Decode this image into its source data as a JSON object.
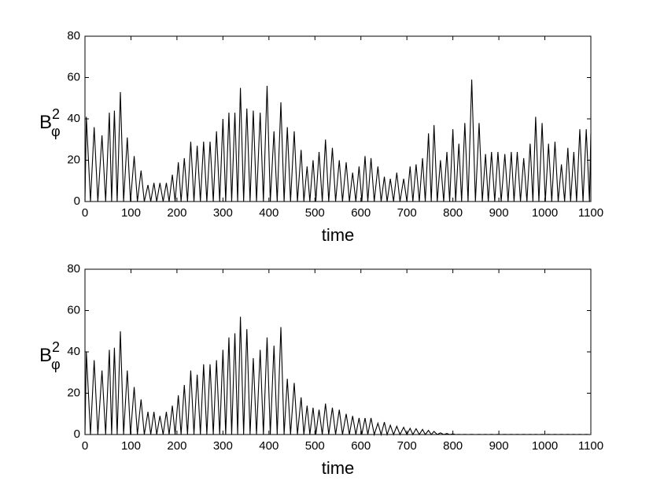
{
  "chart_data": [
    {
      "type": "line",
      "xlabel": "time",
      "ylabel": "B",
      "ylabel_sup": "2",
      "ylabel_sub": "φ",
      "xlim": [
        0,
        1100
      ],
      "ylim": [
        0,
        80
      ],
      "xticks": [
        0,
        100,
        200,
        300,
        400,
        500,
        600,
        700,
        800,
        900,
        1000,
        1100
      ],
      "yticks": [
        0,
        20,
        40,
        60,
        80
      ],
      "series": [
        {
          "color": "#000000",
          "x": [
            0,
            3,
            12,
            20,
            28,
            37,
            45,
            53,
            58,
            64,
            70,
            77,
            84,
            92,
            99,
            107,
            114,
            122,
            129,
            137,
            143,
            150,
            156,
            163,
            170,
            177,
            183,
            190,
            196,
            203,
            209,
            216,
            223,
            230,
            237,
            244,
            251,
            258,
            265,
            272,
            279,
            286,
            293,
            300,
            306,
            313,
            319,
            326,
            332,
            338,
            345,
            352,
            359,
            366,
            373,
            381,
            388,
            396,
            403,
            411,
            418,
            426,
            433,
            440,
            447,
            455,
            462,
            470,
            476,
            483,
            489,
            496,
            502,
            509,
            516,
            523,
            530,
            538,
            545,
            553,
            560,
            568,
            575,
            582,
            589,
            596,
            602,
            609,
            615,
            622,
            629,
            637,
            644,
            651,
            657,
            664,
            671,
            678,
            685,
            693,
            700,
            707,
            713,
            720,
            727,
            734,
            740,
            747,
            753,
            759,
            766,
            773,
            780,
            787,
            793,
            800,
            806,
            813,
            819,
            826,
            833,
            841,
            849,
            857,
            864,
            871,
            877,
            884,
            891,
            898,
            905,
            913,
            920,
            927,
            933,
            940,
            947,
            954,
            961,
            968,
            974,
            980,
            987,
            994,
            1001,
            1008,
            1015,
            1022,
            1029,
            1036,
            1043,
            1050,
            1056,
            1063,
            1069,
            1076,
            1083,
            1090,
            1097,
            1100
          ],
          "values": [
            0,
            41,
            0,
            36,
            0,
            32,
            0,
            43,
            0,
            44,
            0,
            53,
            0,
            31,
            0,
            22,
            0,
            15,
            0,
            8,
            0,
            9,
            0,
            9,
            0,
            9,
            0,
            13,
            0,
            19,
            0,
            21,
            0,
            29,
            0,
            27,
            0,
            29,
            0,
            29,
            0,
            34,
            0,
            40,
            0,
            43,
            0,
            43,
            0,
            55,
            0,
            45,
            0,
            44,
            0,
            43,
            0,
            56,
            0,
            34,
            0,
            48,
            0,
            36,
            0,
            34,
            0,
            25,
            0,
            17,
            0,
            20,
            0,
            24,
            0,
            30,
            0,
            26,
            0,
            20,
            0,
            19,
            0,
            14,
            0,
            17,
            0,
            22,
            0,
            21,
            0,
            17,
            0,
            12,
            0,
            11,
            0,
            14,
            0,
            11,
            0,
            17,
            0,
            18,
            0,
            21,
            0,
            33,
            0,
            37,
            0,
            20,
            0,
            24,
            0,
            35,
            0,
            28,
            0,
            38,
            0,
            59,
            0,
            38,
            0,
            23,
            0,
            24,
            0,
            24,
            0,
            23,
            0,
            24,
            0,
            24,
            0,
            21,
            0,
            28,
            0,
            41,
            0,
            38,
            0,
            28,
            0,
            29,
            0,
            18,
            0,
            26,
            0,
            24,
            0,
            35,
            0,
            35,
            0,
            33
          ]
        }
      ]
    },
    {
      "type": "line",
      "xlabel": "time",
      "ylabel": "B",
      "ylabel_sup": "2",
      "ylabel_sub": "φ",
      "xlim": [
        0,
        1100
      ],
      "ylim": [
        0,
        80
      ],
      "xticks": [
        0,
        100,
        200,
        300,
        400,
        500,
        600,
        700,
        800,
        900,
        1000,
        1100
      ],
      "yticks": [
        0,
        20,
        40,
        60,
        80
      ],
      "series": [
        {
          "color": "#000000",
          "x": [
            0,
            3,
            12,
            20,
            28,
            37,
            45,
            53,
            58,
            64,
            70,
            77,
            84,
            92,
            99,
            107,
            114,
            122,
            129,
            137,
            143,
            150,
            156,
            163,
            170,
            177,
            183,
            190,
            196,
            203,
            209,
            216,
            223,
            230,
            237,
            244,
            251,
            258,
            265,
            272,
            279,
            286,
            293,
            300,
            306,
            313,
            319,
            326,
            332,
            338,
            345,
            352,
            359,
            366,
            373,
            381,
            388,
            396,
            403,
            411,
            418,
            426,
            433,
            440,
            447,
            455,
            462,
            470,
            476,
            483,
            489,
            496,
            502,
            509,
            516,
            523,
            530,
            538,
            545,
            553,
            560,
            568,
            575,
            582,
            589,
            596,
            602,
            609,
            615,
            622,
            629,
            637,
            644,
            651,
            657,
            664,
            671,
            678,
            685,
            693,
            700,
            707,
            713,
            720,
            727,
            734,
            740,
            747,
            753,
            759,
            766,
            773,
            780,
            787,
            793,
            800,
            806,
            813,
            819,
            826,
            833,
            841,
            849,
            857,
            864,
            871,
            877,
            884,
            891,
            898,
            905,
            913,
            920,
            927,
            933,
            940,
            947,
            954,
            961,
            968,
            974,
            980,
            987,
            994,
            1001,
            1008,
            1015,
            1022,
            1029,
            1036,
            1043,
            1050,
            1056,
            1063,
            1069,
            1076,
            1083,
            1090,
            1097,
            1100
          ],
          "values": [
            0,
            40,
            0,
            36,
            0,
            31,
            0,
            41,
            0,
            42,
            0,
            50,
            0,
            31,
            0,
            23,
            0,
            17,
            0,
            11,
            0,
            11,
            0,
            9,
            0,
            11,
            0,
            14,
            0,
            19,
            0,
            24,
            0,
            31,
            0,
            29,
            0,
            34,
            0,
            34,
            0,
            36,
            0,
            41,
            0,
            47,
            0,
            49,
            0,
            57,
            0,
            51,
            0,
            37,
            0,
            41,
            0,
            47,
            0,
            43,
            0,
            52,
            0,
            27,
            0,
            25,
            0,
            18,
            0,
            14,
            0,
            13,
            0,
            12,
            0,
            15,
            0,
            13,
            0,
            12,
            0,
            10,
            0,
            9,
            0,
            8,
            0,
            8,
            0,
            8,
            0,
            5.5,
            0,
            6,
            0,
            4.5,
            0,
            4,
            0,
            3.5,
            0,
            3,
            0,
            2.8,
            0,
            2.5,
            0,
            2,
            0,
            1.5,
            0,
            0.8,
            0,
            0.5,
            0,
            0.3,
            0,
            0.1,
            0,
            0.1,
            0,
            0.1,
            0,
            0.1,
            0,
            0.1,
            0,
            0.1,
            0,
            0.1,
            0,
            0.1,
            0,
            0.1,
            0,
            0.1,
            0,
            0.1,
            0,
            0.1,
            0,
            0.1,
            0,
            0.1,
            0,
            0.1,
            0,
            0.1,
            0,
            0.1,
            0,
            0.1,
            0,
            0.1,
            0,
            0.1,
            0,
            0.1,
            0,
            0
          ]
        }
      ]
    }
  ]
}
